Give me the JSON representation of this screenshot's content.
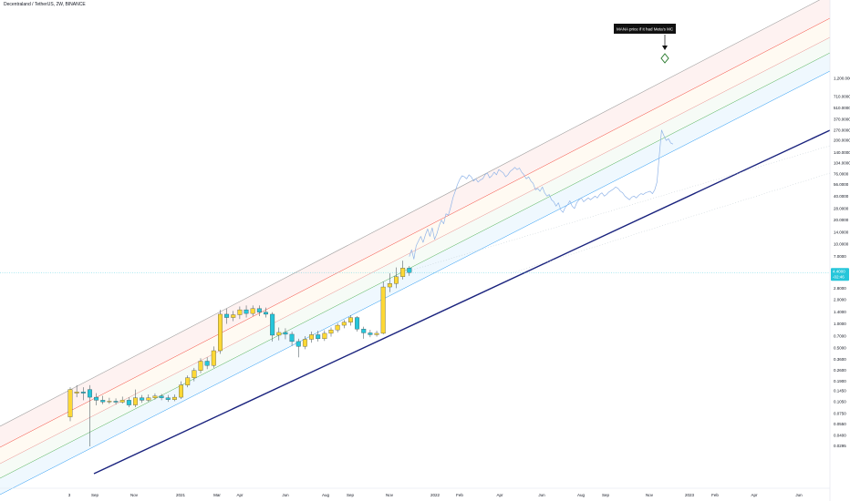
{
  "header": {
    "title": "Decentraland / TetherUS, 2W, BINANCE"
  },
  "chart_data": {
    "type": "candlestick",
    "y_scale": "log",
    "y_ticks": [
      "1,200.0000",
      "710.0000",
      "510.0000",
      "370.0000",
      "270.0000",
      "200.0000",
      "140.0000",
      "104.0000",
      "76.0000",
      "56.0000",
      "40.0000",
      "28.0000",
      "20.0000",
      "14.0000",
      "10.0000",
      "7.0000",
      "2.8000",
      "2.0000",
      "1.4000",
      "1.0000",
      "0.7000",
      "0.5000",
      "0.3600",
      "0.2600",
      "0.1900",
      "0.1450",
      "0.1050",
      "0.0750",
      "0.0550",
      "0.0400",
      "0.0295"
    ],
    "x_ticks": [
      "3",
      "Sep",
      "Nov",
      "2021",
      "Mar",
      "Apr",
      "Jun",
      "Aug",
      "Sep",
      "Nov",
      "2022",
      "Feb",
      "Apr",
      "Jun",
      "Aug",
      "Sep",
      "Nov",
      "2023",
      "Feb",
      "Apr",
      "Jun"
    ],
    "current_price": [
      "4.4000",
      "-02:46"
    ],
    "annotation": "MANA price if it had Meta's MC",
    "candles": [
      {
        "o": 0.068,
        "c": 0.15,
        "h": 0.16,
        "l": 0.06
      },
      {
        "o": 0.135,
        "c": 0.14,
        "h": 0.17,
        "l": 0.12
      },
      {
        "o": 0.14,
        "c": 0.135,
        "h": 0.16,
        "l": 0.11
      },
      {
        "o": 0.15,
        "c": 0.12,
        "h": 0.17,
        "l": 0.029
      },
      {
        "o": 0.12,
        "c": 0.11,
        "h": 0.135,
        "l": 0.095
      },
      {
        "o": 0.11,
        "c": 0.105,
        "h": 0.125,
        "l": 0.098
      },
      {
        "o": 0.105,
        "c": 0.107,
        "h": 0.118,
        "l": 0.099
      },
      {
        "o": 0.107,
        "c": 0.104,
        "h": 0.116,
        "l": 0.097
      },
      {
        "o": 0.104,
        "c": 0.11,
        "h": 0.122,
        "l": 0.1
      },
      {
        "o": 0.11,
        "c": 0.096,
        "h": 0.12,
        "l": 0.09
      },
      {
        "o": 0.096,
        "c": 0.118,
        "h": 0.15,
        "l": 0.09
      },
      {
        "o": 0.118,
        "c": 0.11,
        "h": 0.128,
        "l": 0.102
      },
      {
        "o": 0.11,
        "c": 0.118,
        "h": 0.13,
        "l": 0.105
      },
      {
        "o": 0.118,
        "c": 0.124,
        "h": 0.134,
        "l": 0.112
      },
      {
        "o": 0.124,
        "c": 0.118,
        "h": 0.132,
        "l": 0.11
      },
      {
        "o": 0.118,
        "c": 0.112,
        "h": 0.128,
        "l": 0.105
      },
      {
        "o": 0.112,
        "c": 0.12,
        "h": 0.13,
        "l": 0.107
      },
      {
        "o": 0.12,
        "c": 0.17,
        "h": 0.19,
        "l": 0.114
      },
      {
        "o": 0.17,
        "c": 0.21,
        "h": 0.225,
        "l": 0.16
      },
      {
        "o": 0.21,
        "c": 0.26,
        "h": 0.28,
        "l": 0.19
      },
      {
        "o": 0.26,
        "c": 0.34,
        "h": 0.37,
        "l": 0.24
      },
      {
        "o": 0.34,
        "c": 0.3,
        "h": 0.38,
        "l": 0.27
      },
      {
        "o": 0.3,
        "c": 0.46,
        "h": 0.52,
        "l": 0.28
      },
      {
        "o": 0.46,
        "c": 1.32,
        "h": 1.5,
        "l": 0.42
      },
      {
        "o": 1.32,
        "c": 1.2,
        "h": 1.55,
        "l": 1.0
      },
      {
        "o": 1.2,
        "c": 1.3,
        "h": 1.45,
        "l": 1.08
      },
      {
        "o": 1.3,
        "c": 1.5,
        "h": 1.65,
        "l": 1.15
      },
      {
        "o": 1.5,
        "c": 1.35,
        "h": 1.7,
        "l": 1.2
      },
      {
        "o": 1.35,
        "c": 1.55,
        "h": 1.7,
        "l": 1.25
      },
      {
        "o": 1.55,
        "c": 1.4,
        "h": 1.7,
        "l": 1.25
      },
      {
        "o": 1.4,
        "c": 1.32,
        "h": 1.6,
        "l": 1.2
      },
      {
        "o": 1.32,
        "c": 0.72,
        "h": 1.4,
        "l": 0.6
      },
      {
        "o": 0.72,
        "c": 0.78,
        "h": 0.9,
        "l": 0.62
      },
      {
        "o": 0.78,
        "c": 0.74,
        "h": 0.88,
        "l": 0.64
      },
      {
        "o": 0.74,
        "c": 0.6,
        "h": 0.8,
        "l": 0.53
      },
      {
        "o": 0.6,
        "c": 0.52,
        "h": 0.65,
        "l": 0.38
      },
      {
        "o": 0.52,
        "c": 0.64,
        "h": 0.7,
        "l": 0.48
      },
      {
        "o": 0.64,
        "c": 0.73,
        "h": 0.8,
        "l": 0.58
      },
      {
        "o": 0.73,
        "c": 0.65,
        "h": 0.82,
        "l": 0.6
      },
      {
        "o": 0.65,
        "c": 0.76,
        "h": 0.83,
        "l": 0.61
      },
      {
        "o": 0.76,
        "c": 0.84,
        "h": 0.9,
        "l": 0.69
      },
      {
        "o": 0.84,
        "c": 0.96,
        "h": 1.02,
        "l": 0.78
      },
      {
        "o": 0.96,
        "c": 1.05,
        "h": 1.12,
        "l": 0.88
      },
      {
        "o": 1.05,
        "c": 1.2,
        "h": 1.28,
        "l": 0.95
      },
      {
        "o": 1.2,
        "c": 0.86,
        "h": 1.25,
        "l": 0.8
      },
      {
        "o": 0.86,
        "c": 0.77,
        "h": 0.92,
        "l": 0.65
      },
      {
        "o": 0.77,
        "c": 0.73,
        "h": 0.84,
        "l": 0.68
      },
      {
        "o": 0.73,
        "c": 0.76,
        "h": 0.82,
        "l": 0.69
      },
      {
        "o": 0.76,
        "c": 2.9,
        "h": 3.4,
        "l": 0.74
      },
      {
        "o": 2.9,
        "c": 3.2,
        "h": 4.3,
        "l": 2.5
      },
      {
        "o": 3.2,
        "c": 3.9,
        "h": 5.1,
        "l": 2.8
      },
      {
        "o": 3.9,
        "c": 5.0,
        "h": 6.2,
        "l": 3.6
      },
      {
        "o": 5.0,
        "c": 4.4,
        "h": 5.3,
        "l": 4.0
      }
    ],
    "line_series": [
      [
        7.0,
        8.5,
        6.5,
        9.5,
        11,
        12.5,
        10.5,
        13,
        15.5,
        12.5,
        16,
        11.5,
        13.5,
        17,
        20,
        18,
        24,
        23,
        29,
        38,
        46,
        56,
        65,
        72,
        70,
        66,
        74,
        70,
        62,
        66,
        60,
        64,
        66,
        74,
        78,
        68,
        72,
        80,
        74,
        86,
        82,
        78,
        70,
        74,
        82,
        86,
        92,
        86,
        90,
        80,
        74,
        66,
        70,
        62,
        58,
        48,
        50,
        46,
        52,
        44,
        40,
        42,
        36,
        34,
        30,
        33,
        27,
        25,
        29,
        31,
        35,
        30,
        28,
        33,
        36,
        38,
        34,
        36,
        38,
        36,
        38,
        40,
        38,
        42,
        44,
        40,
        42,
        45,
        47,
        49,
        52,
        50,
        46,
        44,
        40,
        38,
        36,
        39,
        40,
        38,
        41,
        43,
        42,
        44,
        45,
        46,
        43,
        48,
        60,
        130,
        270,
        230,
        200,
        210,
        185,
        180
      ]
    ]
  }
}
